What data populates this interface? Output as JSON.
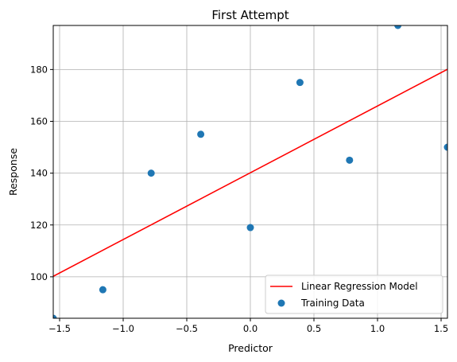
{
  "chart_data": {
    "type": "scatter",
    "title": "First Attempt",
    "xlabel": "Predictor",
    "ylabel": "Response",
    "xlim": [
      -1.55,
      1.55
    ],
    "ylim": [
      84,
      197
    ],
    "xticks": [
      -1.5,
      -1.0,
      -0.5,
      0.0,
      0.5,
      1.0,
      1.5
    ],
    "xtick_labels": [
      "−1.5",
      "−1.0",
      "−0.5",
      "0.0",
      "0.5",
      "1.0",
      "1.5"
    ],
    "yticks": [
      100,
      120,
      140,
      160,
      180
    ],
    "ytick_labels": [
      "100",
      "120",
      "140",
      "160",
      "180"
    ],
    "grid": true,
    "legend_position": "lower-right",
    "series": [
      {
        "name": "Linear Regression Model",
        "kind": "line",
        "color": "#ff0000",
        "x": [
          -1.55,
          1.55
        ],
        "y": [
          100.2,
          180.1
        ]
      },
      {
        "name": "Training Data",
        "kind": "scatter",
        "color": "#1f77b4",
        "x": [
          -1.55,
          -1.16,
          -0.78,
          -0.39,
          0.0,
          0.39,
          0.78,
          1.16,
          1.55
        ],
        "y": [
          84,
          95,
          140,
          155,
          119,
          175,
          145,
          197,
          150
        ]
      }
    ]
  }
}
